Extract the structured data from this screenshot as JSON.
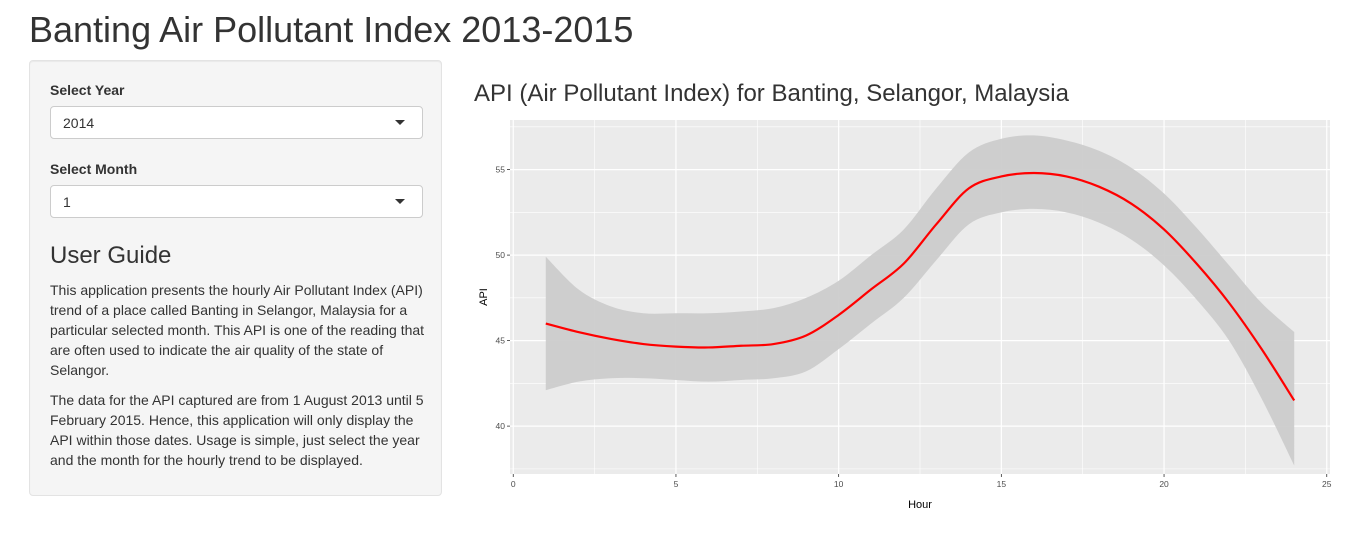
{
  "page": {
    "title": "Banting Air Pollutant Index 2013-2015"
  },
  "sidebar": {
    "year_label": "Select Year",
    "year_value": "2014",
    "month_label": "Select Month",
    "month_value": "1",
    "guide_title": "User Guide",
    "guide_paragraphs": [
      "This application presents the hourly Air Pollutant Index (API) trend of a place called Banting in Selangor, Malaysia for a particular selected month. This API is one of the reading that are often used to indicate the air quality of the state of Selangor.",
      "The data for the API captured are from 1 August 2013 until 5 February 2015. Hence, this application will only display the API within those dates. Usage is simple, just select the year and the month for the hourly trend to be displayed."
    ]
  },
  "plot": {
    "title": "API (Air Pollutant Index) for Banting, Selangor, Malaysia"
  },
  "chart_data": {
    "type": "line",
    "title": "API (Air Pollutant Index) for Banting, Selangor, Malaysia",
    "xlabel": "Hour",
    "ylabel": "API",
    "xlim": [
      -0.1,
      25.1
    ],
    "ylim": [
      37.2,
      57.9
    ],
    "x_ticks": [
      0,
      5,
      10,
      15,
      20,
      25
    ],
    "y_ticks": [
      40,
      45,
      50,
      55
    ],
    "grid": true,
    "panel_color": "#ebebeb",
    "line_color": "#ff0000",
    "band_color": "#cccccc",
    "series": [
      {
        "x": [
          1,
          2,
          3,
          4,
          5,
          6,
          7,
          8,
          9,
          10,
          11,
          12,
          13,
          14,
          15,
          16,
          17,
          18,
          19,
          20,
          21,
          22,
          23,
          24
        ],
        "values": [
          46.0,
          45.5,
          45.1,
          44.8,
          44.65,
          44.6,
          44.7,
          44.8,
          45.3,
          46.5,
          48.0,
          49.5,
          51.8,
          53.9,
          54.6,
          54.8,
          54.6,
          54.0,
          53.0,
          51.5,
          49.5,
          47.2,
          44.5,
          41.5
        ],
        "lower": [
          42.1,
          42.6,
          42.8,
          42.8,
          42.7,
          42.6,
          42.7,
          42.8,
          43.2,
          44.5,
          46.0,
          47.5,
          49.7,
          51.8,
          52.5,
          52.7,
          52.5,
          51.9,
          50.9,
          49.4,
          47.4,
          45.0,
          41.6,
          37.7
        ],
        "upper": [
          49.9,
          48.0,
          47.0,
          46.6,
          46.6,
          46.6,
          46.7,
          46.9,
          47.5,
          48.5,
          50.0,
          51.5,
          53.9,
          56.0,
          56.8,
          57.0,
          56.7,
          56.1,
          55.1,
          53.6,
          51.6,
          49.4,
          47.2,
          45.5
        ]
      }
    ]
  }
}
